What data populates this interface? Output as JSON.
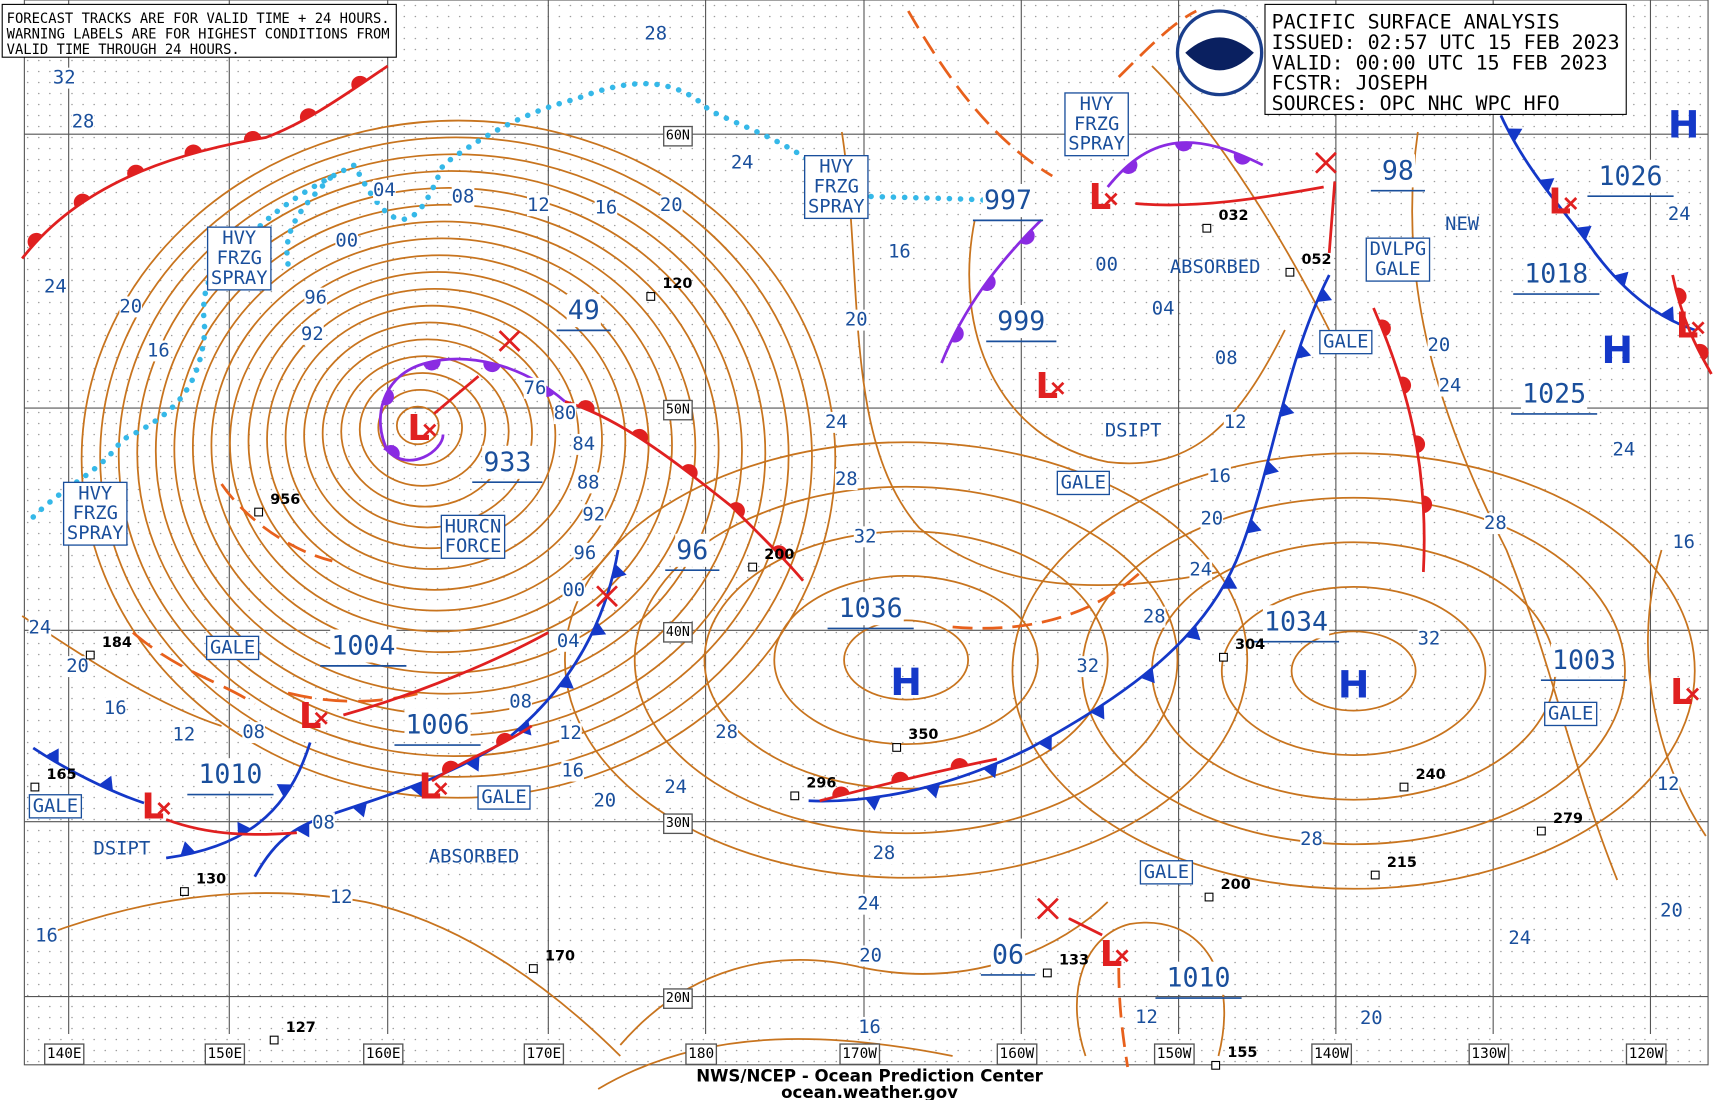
{
  "notice": [
    "FORECAST TRACKS ARE FOR VALID TIME + 24 HOURS.",
    "WARNING LABELS ARE FOR HIGHEST CONDITIONS FROM",
    "VALID TIME THROUGH 24 HOURS."
  ],
  "info": [
    "PACIFIC SURFACE ANALYSIS",
    "ISSUED: 02:57 UTC 15 FEB 2023",
    "VALID:  00:00 UTC 15 FEB 2023",
    "FCSTR:  JOSEPH",
    "SOURCES: OPC NHC WPC HFO"
  ],
  "footer": {
    "org": "NWS/NCEP - Ocean Prediction Center",
    "url": "ocean.weather.gov"
  },
  "lon_labels": [
    "140E",
    "150E",
    "160E",
    "170E",
    "180",
    "170W",
    "160W",
    "150W",
    "140W",
    "130W",
    "120W"
  ],
  "lat_labels": [
    "60N",
    "50N",
    "40N",
    "30N",
    "20N"
  ],
  "pressure_labels": [
    "933",
    "1004",
    "1006",
    "1010",
    "96",
    "49",
    "997",
    "999",
    "1036",
    "1034",
    "1026",
    "1018",
    "1025",
    "1003",
    "1010",
    "06",
    "98"
  ],
  "highs": [
    "H",
    "H",
    "H",
    "H"
  ],
  "lows": [
    "L",
    "L",
    "L",
    "L",
    "L",
    "L",
    "L",
    "L",
    "L",
    "L"
  ],
  "warnings": [
    [
      "HVY",
      "FRZG",
      "SPRAY"
    ],
    [
      "HVY",
      "FRZG",
      "SPRAY"
    ],
    [
      "HVY",
      "FRZG",
      "SPRAY"
    ],
    [
      "HVY",
      "FRZG",
      "SPRAY"
    ],
    [
      "HURCN",
      "FORCE"
    ],
    [
      "GALE"
    ],
    [
      "GALE"
    ],
    [
      "GALE"
    ],
    [
      "GALE"
    ],
    [
      "GALE"
    ],
    [
      "GALE"
    ],
    [
      "GALE"
    ],
    [
      "DVLPG",
      "GALE"
    ]
  ],
  "remarks": [
    "ABSORBED",
    "ABSORBED",
    "DSIPT",
    "DSIPT",
    "NEW"
  ],
  "isobar_labels": [
    "28",
    "32",
    "28",
    "24",
    "20",
    "16",
    "04",
    "08",
    "12",
    "16",
    "20",
    "24",
    "00",
    "96",
    "92",
    "76",
    "80",
    "84",
    "88",
    "92",
    "96",
    "00",
    "04",
    "08",
    "12",
    "16",
    "20",
    "24",
    "28",
    "20",
    "16",
    "24",
    "28",
    "32",
    "00",
    "04",
    "08",
    "12",
    "16",
    "20",
    "24",
    "28",
    "32",
    "28",
    "24",
    "20",
    "16",
    "12",
    "20",
    "24",
    "20",
    "28",
    "32",
    "28",
    "24",
    "20",
    "16",
    "12",
    "24",
    "24",
    "24",
    "20",
    "16",
    "12",
    "08",
    "08",
    "12",
    "16"
  ],
  "stations": [
    "956",
    "120",
    "200",
    "296",
    "350",
    "304",
    "240",
    "215",
    "200",
    "170",
    "133",
    "127",
    "130",
    "165",
    "184",
    "279",
    "155",
    "032",
    "052"
  ]
}
